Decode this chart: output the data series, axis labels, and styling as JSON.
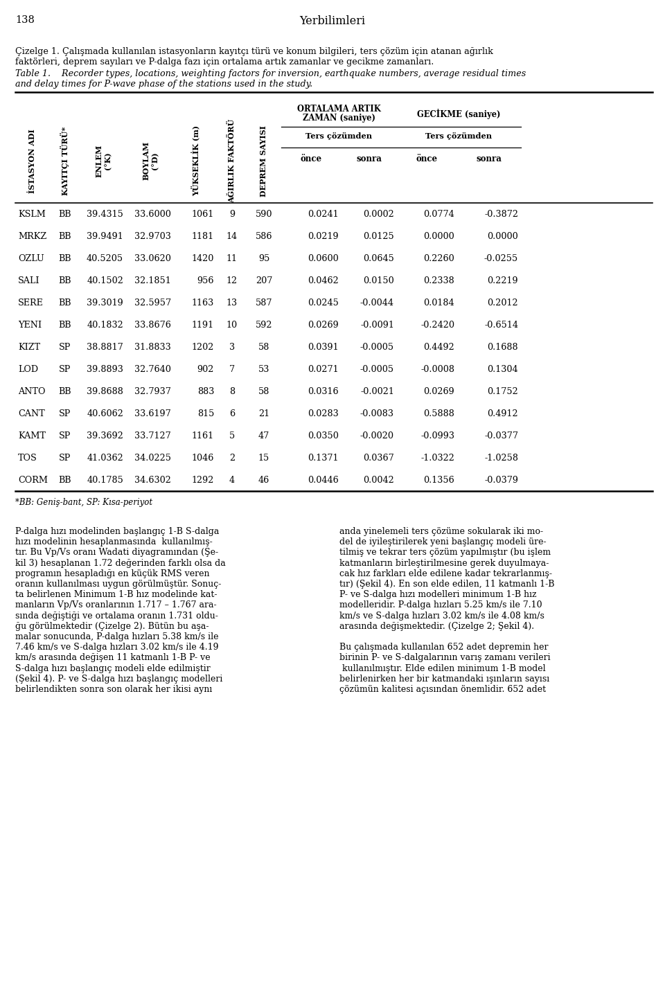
{
  "page_number": "138",
  "journal_name": "Yerbilimleri",
  "caption_turkish_line1": "Çizelge 1. Çalışmada kullanılan istasyonların kayıtçı türü ve konum bilgileri, ters çözüm için atanan ağırlık",
  "caption_turkish_line2": "faktörleri, deprem sayıları ve P-dalga fazı için ortalama artık zamanlar ve gecikme zamanları.",
  "caption_english_line1": "Table 1.    Recorder types, locations, weighting factors for inversion, earthquake numbers, average residual times",
  "caption_english_line2": "and delay times for P-wave phase of the stations used in the study.",
  "footnote": "*BB: Geniş-bant, SP: Kısa-periyot",
  "col_headers_rotated": [
    "İSTASYON ADI",
    "KAYITÇI TÜRÜ*",
    "ENLEM\n(°K)",
    "BOYLAM\n(°D)",
    "YÜKSEKLİK (m)",
    "AĞIRLIK FAKTÖRÜ",
    "DEPREM SAYISI"
  ],
  "rows": [
    [
      "KSLM",
      "BB",
      "39.4315",
      "33.6000",
      "1061",
      "9",
      "590",
      "0.0241",
      "0.0002",
      "0.0774",
      "-0.3872"
    ],
    [
      "MRKZ",
      "BB",
      "39.9491",
      "32.9703",
      "1181",
      "14",
      "586",
      "0.0219",
      "0.0125",
      "0.0000",
      "0.0000"
    ],
    [
      "OZLU",
      "BB",
      "40.5205",
      "33.0620",
      "1420",
      "11",
      "95",
      "0.0600",
      "0.0645",
      "0.2260",
      "-0.0255"
    ],
    [
      "SALI",
      "BB",
      "40.1502",
      "32.1851",
      "956",
      "12",
      "207",
      "0.0462",
      "0.0150",
      "0.2338",
      "0.2219"
    ],
    [
      "SERE",
      "BB",
      "39.3019",
      "32.5957",
      "1163",
      "13",
      "587",
      "0.0245",
      "-0.0044",
      "0.0184",
      "0.2012"
    ],
    [
      "YENI",
      "BB",
      "40.1832",
      "33.8676",
      "1191",
      "10",
      "592",
      "0.0269",
      "-0.0091",
      "-0.2420",
      "-0.6514"
    ],
    [
      "KIZT",
      "SP",
      "38.8817",
      "31.8833",
      "1202",
      "3",
      "58",
      "0.0391",
      "-0.0005",
      "0.4492",
      "0.1688"
    ],
    [
      "LOD",
      "SP",
      "39.8893",
      "32.7640",
      "902",
      "7",
      "53",
      "0.0271",
      "-0.0005",
      "-0.0008",
      "0.1304"
    ],
    [
      "ANTO",
      "BB",
      "39.8688",
      "32.7937",
      "883",
      "8",
      "58",
      "0.0316",
      "-0.0021",
      "0.0269",
      "0.1752"
    ],
    [
      "CANT",
      "SP",
      "40.6062",
      "33.6197",
      "815",
      "6",
      "21",
      "0.0283",
      "-0.0083",
      "0.5888",
      "0.4912"
    ],
    [
      "KAMT",
      "SP",
      "39.3692",
      "33.7127",
      "1161",
      "5",
      "47",
      "0.0350",
      "-0.0020",
      "-0.0993",
      "-0.0377"
    ],
    [
      "TOS",
      "SP",
      "41.0362",
      "34.0225",
      "1046",
      "2",
      "15",
      "0.1371",
      "0.0367",
      "-1.0322",
      "-1.0258"
    ],
    [
      "CORM",
      "BB",
      "40.1785",
      "34.6302",
      "1292",
      "4",
      "46",
      "0.0446",
      "0.0042",
      "0.1356",
      "-0.0379"
    ]
  ],
  "body_left": [
    "P-dalga hızı modelinden başlangıç 1-B S-dalga",
    "hızı modelinin hesaplanmasında  kullanılmış-",
    "tır. Bu Vp/Vs oranı Wadati diyagramından (Şe-",
    "kil 3) hesaplanan 1.72 değerinden farklı olsa da",
    "programın hesapladığı en küçük RMS veren",
    "oranın kullanılması uygun görülmüştür. Sonuç-",
    "ta belirlenen Minimum 1-B hız modelinde kat-",
    "manların Vp/Vs oranlarının 1.717 – 1.767 ara-",
    "sında değiştiği ve ortalama oranın 1.731 oldu-",
    "ğu görülmektedir (Çizelge 2). Bütün bu aşa-",
    "malar sonucunda, P-dalga hızları 5.38 km/s ile",
    "7.46 km/s ve S-dalga hızları 3.02 km/s ile 4.19",
    "km/s arasında değişen 11 katmanlı 1-B P- ve",
    "S-dalga hızı başlangıç modeli elde edilmiştir",
    "(Şekil 4). P- ve S-dalga hızı başlangıç modelleri",
    "belirlendikten sonra son olarak her ikisi aynı"
  ],
  "body_right": [
    "anda yinelemeli ters çözüme sokularak iki mo-",
    "del de iyileştirilerek yeni başlangıç modeli üre-",
    "tilmiş ve tekrar ters çözüm yapılmıştır (bu işlem",
    "katmanların birleştirilmesine gerek duyulmaya-",
    "cak hız farkları elde edilene kadar tekrarlanmış-",
    "tır) (Şekil 4). En son elde edilen, 11 katmanlı 1-B",
    "P- ve S-dalga hızı modelleri minimum 1-B hız",
    "modelleridir. P-dalga hızları 5.25 km/s ile 7.10",
    "km/s ve S-dalga hızları 3.02 km/s ile 4.08 km/s",
    "arasında değişmektedir. (Çizelge 2; Şekil 4).",
    "",
    "Bu çalışmada kullanılan 652 adet depremin her",
    "birinin P- ve S-dalgalarının varış zamanı verileri",
    " kullanılmıştır. Elde edilen minimum 1-B model",
    "belirlenirken her bir katmandaki ışınların sayısı",
    "çözümün kalitesi açısından önemlidir. 652 adet"
  ]
}
